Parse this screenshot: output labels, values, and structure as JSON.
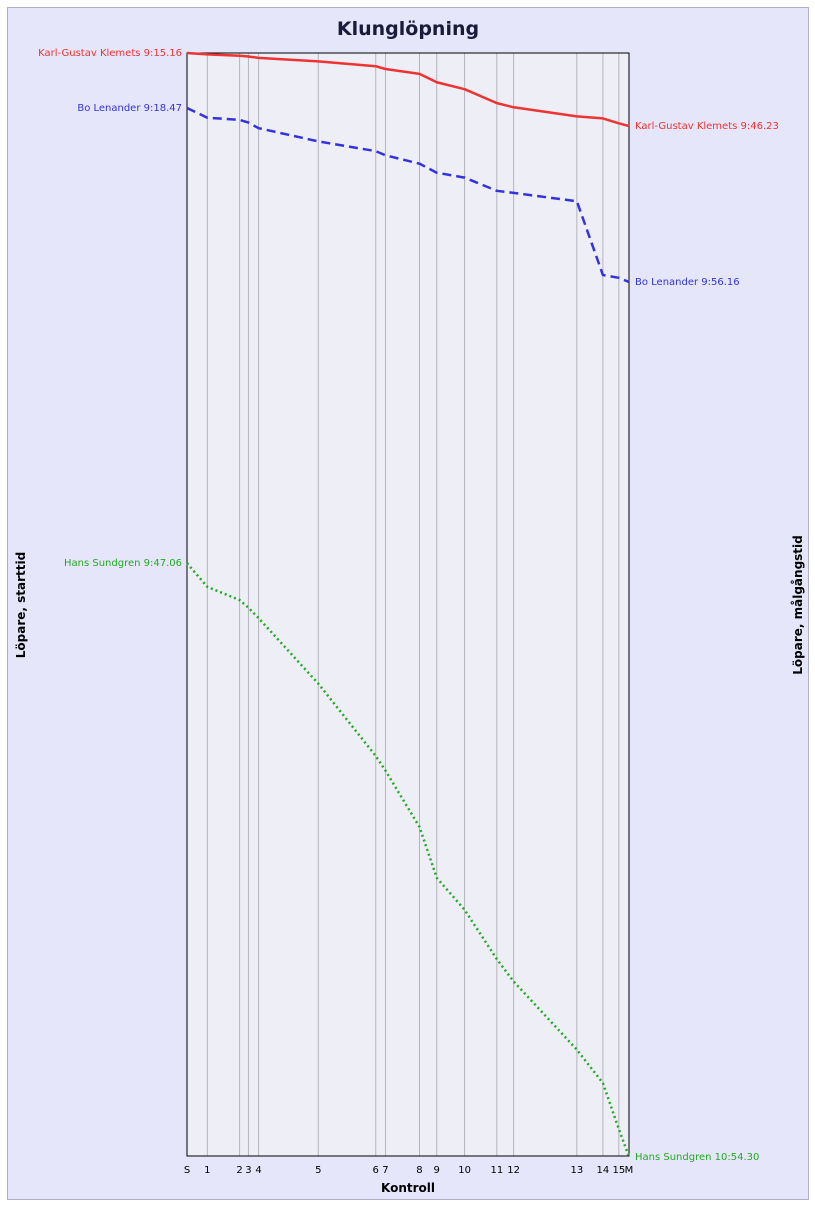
{
  "chart_data": {
    "type": "line",
    "title": "Klunglöpning",
    "xlabel": "Kontroll",
    "ylabel_left": "Löpare, starttid",
    "ylabel_right": "Löpare, målgångstid",
    "grid": "vertical",
    "controls": [
      {
        "label": "S",
        "pos": 0
      },
      {
        "label": "1",
        "pos": 4.6
      },
      {
        "label": "2",
        "pos": 11.9
      },
      {
        "label": "3",
        "pos": 13.9
      },
      {
        "label": "4",
        "pos": 16.2
      },
      {
        "label": "5",
        "pos": 29.7
      },
      {
        "label": "6",
        "pos": 42.7
      },
      {
        "label": "7",
        "pos": 44.9
      },
      {
        "label": "8",
        "pos": 52.6
      },
      {
        "label": "9",
        "pos": 56.5
      },
      {
        "label": "10",
        "pos": 62.8
      },
      {
        "label": "11",
        "pos": 70.1
      },
      {
        "label": "12",
        "pos": 73.9
      },
      {
        "label": "13",
        "pos": 88.2
      },
      {
        "label": "14",
        "pos": 94.1
      },
      {
        "label": "15",
        "pos": 97.7
      },
      {
        "label": "M",
        "pos": 100
      }
    ],
    "ylim_minutes": [
      0,
      100
    ],
    "series": [
      {
        "name": "Karl-Gustav Klemets",
        "color": "#ee3333",
        "style": "solid",
        "start_label": "Karl-Gustav Klemets 9:15.16",
        "end_label": "Karl-Gustav Klemets 9:46.23",
        "values": [
          0,
          0.2,
          0.4,
          0.5,
          0.7,
          1.2,
          1.9,
          2.3,
          3.0,
          4.2,
          5.2,
          7.2,
          7.8,
          9.1,
          9.4,
          10.1,
          10.5
        ]
      },
      {
        "name": "Bo Lenander",
        "color": "#3333dd",
        "style": "dashed",
        "start_label": "Bo Lenander 9:18.47",
        "end_label": "Bo Lenander 9:56.16",
        "values": [
          7.9,
          9.3,
          9.6,
          10.0,
          10.8,
          12.7,
          14.1,
          14.7,
          15.9,
          17.2,
          17.9,
          19.8,
          20.1,
          21.3,
          31.9,
          32.3,
          32.9
        ]
      },
      {
        "name": "Hans Sundgren",
        "color": "#22aa22",
        "style": "dotted",
        "start_label": "Hans Sundgren 9:47.06",
        "end_label": "Hans Sundgren 10:54.30",
        "values": [
          73.3,
          76.7,
          78.6,
          79.7,
          81.2,
          90.6,
          101.0,
          103.1,
          111.2,
          118.5,
          123.1,
          130.2,
          133.4,
          143.2,
          148.0,
          154.6,
          158.6
        ]
      }
    ]
  }
}
